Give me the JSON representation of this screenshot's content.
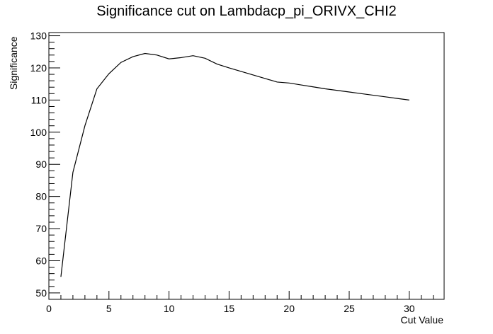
{
  "chart_data": {
    "type": "line",
    "title": "Significance cut on Lambdacp_pi_ORIVX_CHI2",
    "xlabel": "Cut Value",
    "ylabel": "Significance",
    "xlim": [
      0,
      32.9
    ],
    "ylim": [
      48,
      131
    ],
    "x_ticks": [
      0,
      5,
      10,
      15,
      20,
      25,
      30
    ],
    "y_ticks": [
      50,
      60,
      70,
      80,
      90,
      100,
      110,
      120,
      130
    ],
    "grid": false,
    "legend": "none",
    "line_color": "#000000",
    "series": [
      {
        "x": [
          1,
          2,
          3,
          4,
          5,
          6,
          7,
          8,
          9,
          10,
          11,
          12,
          13,
          14,
          15,
          16,
          17,
          18,
          19,
          20,
          21,
          22,
          23,
          24,
          25,
          26,
          27,
          28,
          29,
          30
        ],
        "values": [
          55.0,
          87.5,
          102.0,
          113.5,
          118.2,
          121.7,
          123.5,
          124.5,
          124.0,
          122.8,
          123.2,
          123.8,
          123.0,
          121.2,
          120.0,
          118.9,
          117.8,
          116.7,
          115.6,
          115.3,
          114.7,
          114.1,
          113.5,
          113.0,
          112.5,
          112.0,
          111.5,
          111.0,
          110.5,
          110.0
        ]
      }
    ]
  }
}
